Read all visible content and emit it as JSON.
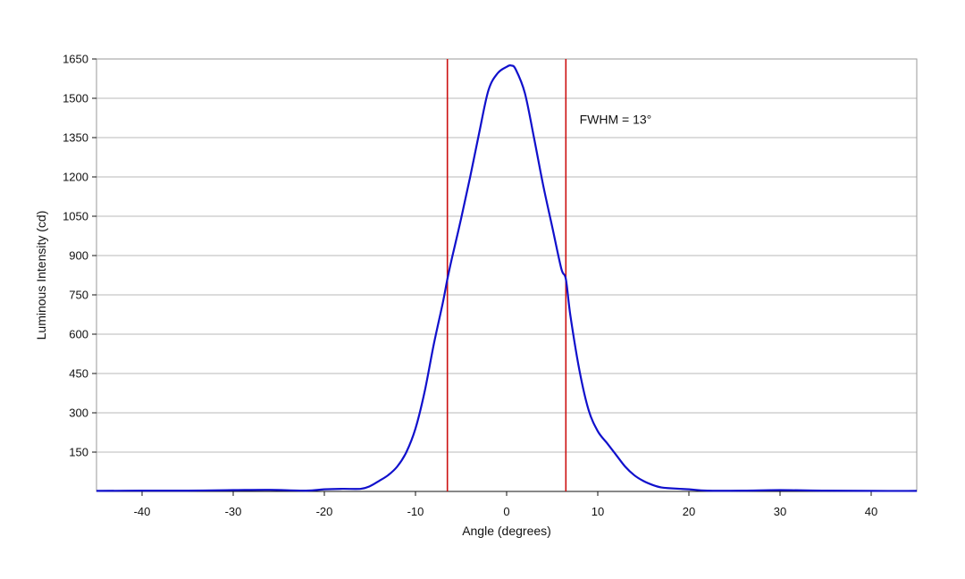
{
  "chart_data": {
    "type": "line",
    "xlabel": "Angle (degrees)",
    "ylabel": "Luminous Intensity (cd)",
    "xlim": [
      -45,
      45
    ],
    "ylim": [
      0,
      1650
    ],
    "x_ticks": [
      -40,
      -30,
      -20,
      -10,
      0,
      10,
      20,
      30,
      40
    ],
    "y_ticks": [
      150,
      300,
      450,
      600,
      750,
      900,
      1050,
      1200,
      1350,
      1500,
      1650
    ],
    "grid": "horizontal",
    "series": [
      {
        "color": "#1010cc",
        "x": [
          -45,
          -40,
          -35,
          -30,
          -26,
          -22,
          -20,
          -18,
          -16,
          -15,
          -14,
          -13,
          -12,
          -11,
          -10,
          -9,
          -8,
          -7,
          -6.5,
          -6,
          -5,
          -4,
          -3,
          -2,
          -1,
          0,
          0.5,
          1,
          2,
          3,
          4,
          5,
          6,
          6.5,
          7,
          8,
          9,
          10,
          11,
          12,
          13,
          14,
          15,
          16,
          17,
          18,
          20,
          22,
          26,
          30,
          35,
          40,
          45
        ],
        "y": [
          2,
          3,
          3,
          5,
          6,
          3,
          8,
          10,
          10,
          20,
          40,
          62,
          95,
          150,
          240,
          380,
          560,
          720,
          810,
          890,
          1040,
          1200,
          1370,
          1530,
          1595,
          1620,
          1625,
          1610,
          1520,
          1350,
          1170,
          1010,
          850,
          810,
          670,
          460,
          310,
          230,
          185,
          140,
          95,
          62,
          40,
          25,
          15,
          12,
          8,
          3,
          3,
          5,
          3,
          2,
          2
        ]
      }
    ],
    "annotations": [
      {
        "text": "FWHM = 13°",
        "x": 8,
        "y": 1420
      }
    ],
    "vertical_lines": [
      {
        "x": -6.5,
        "color": "#cc1111"
      },
      {
        "x": 6.5,
        "color": "#cc1111"
      }
    ]
  }
}
